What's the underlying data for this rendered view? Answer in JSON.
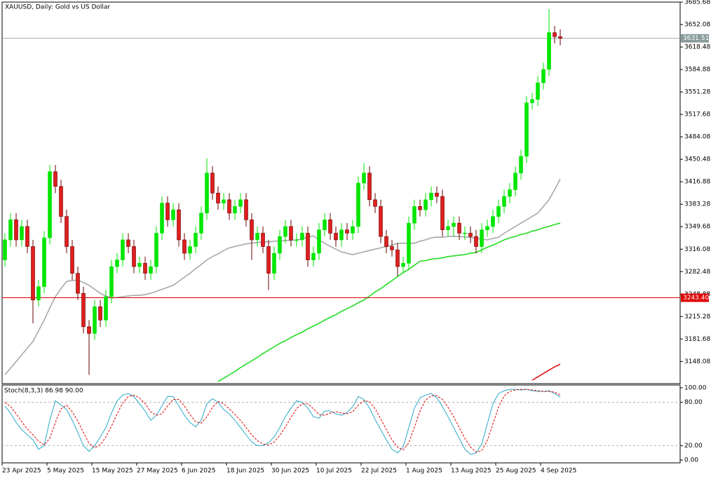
{
  "chart_data": {
    "type": "candlestick",
    "title": "XAUUSD, Daily:  Gold vs US Dollar",
    "categories": [
      "23 Apr 2025",
      null,
      null,
      null,
      null,
      null,
      null,
      null,
      "5 May 2025",
      null,
      null,
      null,
      null,
      null,
      null,
      null,
      "15 May 2025",
      null,
      null,
      null,
      null,
      null,
      null,
      null,
      "27 May 2025",
      null,
      null,
      null,
      null,
      null,
      null,
      null,
      "6 Jun 2025",
      null,
      null,
      null,
      null,
      null,
      null,
      null,
      "18 Jun 2025",
      null,
      null,
      null,
      null,
      null,
      null,
      null,
      "30 Jun 2025",
      null,
      null,
      null,
      null,
      null,
      null,
      null,
      "10 Jul 2025",
      null,
      null,
      null,
      null,
      null,
      null,
      null,
      "22 Jul 2025",
      null,
      null,
      null,
      null,
      null,
      null,
      null,
      "1 Aug 2025",
      null,
      null,
      null,
      null,
      null,
      null,
      null,
      "13 Aug 2025",
      null,
      null,
      null,
      null,
      null,
      null,
      null,
      "25 Aug 2025",
      null,
      null,
      null,
      null,
      null,
      null,
      null,
      "4 Sep 2025",
      null,
      null,
      null
    ],
    "open": [
      3300,
      3330,
      3360,
      3330,
      3350,
      3320,
      3240,
      3260,
      3333,
      3432,
      3410,
      3365,
      3320,
      3280,
      3250,
      3200,
      3190,
      3230,
      3210,
      3245,
      3290,
      3300,
      3330,
      3320,
      3290,
      3295,
      3280,
      3290,
      3340,
      3385,
      3360,
      3375,
      3330,
      3310,
      3320,
      3340,
      3370,
      3430,
      3400,
      3385,
      3390,
      3370,
      3380,
      3390,
      3360,
      3330,
      3340,
      3320,
      3280,
      3310,
      3335,
      3350,
      3330,
      3330,
      3340,
      3300,
      3310,
      3345,
      3360,
      3340,
      3330,
      3345,
      3340,
      3350,
      3415,
      3430,
      3390,
      3380,
      3335,
      3320,
      3315,
      3290,
      3295,
      3355,
      3380,
      3375,
      3390,
      3400,
      3395,
      3345,
      3350,
      3355,
      3340,
      3340,
      3335,
      3320,
      3345,
      3350,
      3365,
      3380,
      3395,
      3405,
      3430,
      3455,
      3535,
      3540,
      3565,
      3585,
      3640,
      3634
    ],
    "high": [
      3340,
      3370,
      3370,
      3360,
      3360,
      3330,
      3270,
      3343,
      3442,
      3442,
      3420,
      3375,
      3330,
      3290,
      3260,
      3210,
      3240,
      3240,
      3255,
      3300,
      3310,
      3340,
      3340,
      3330,
      3305,
      3305,
      3300,
      3350,
      3395,
      3395,
      3385,
      3385,
      3340,
      3330,
      3350,
      3380,
      3452,
      3440,
      3410,
      3400,
      3400,
      3390,
      3400,
      3400,
      3370,
      3350,
      3350,
      3330,
      3320,
      3345,
      3360,
      3360,
      3340,
      3350,
      3350,
      3320,
      3355,
      3370,
      3370,
      3350,
      3355,
      3355,
      3360,
      3425,
      3445,
      3440,
      3400,
      3390,
      3345,
      3330,
      3325,
      3305,
      3365,
      3390,
      3390,
      3400,
      3410,
      3410,
      3405,
      3360,
      3365,
      3365,
      3350,
      3350,
      3345,
      3355,
      3360,
      3375,
      3390,
      3405,
      3415,
      3440,
      3465,
      3545,
      3550,
      3575,
      3595,
      3675,
      3650,
      3645
    ],
    "low": [
      3290,
      3320,
      3320,
      3320,
      3310,
      3205,
      3230,
      3250,
      3323,
      3400,
      3355,
      3310,
      3270,
      3240,
      3190,
      3128,
      3180,
      3200,
      3200,
      3235,
      3280,
      3290,
      3310,
      3280,
      3280,
      3270,
      3270,
      3280,
      3330,
      3350,
      3350,
      3320,
      3300,
      3300,
      3310,
      3330,
      3360,
      3390,
      3375,
      3375,
      3360,
      3360,
      3370,
      3350,
      3300,
      3320,
      3310,
      3255,
      3270,
      3300,
      3325,
      3320,
      3320,
      3320,
      3290,
      3290,
      3300,
      3335,
      3330,
      3320,
      3320,
      3330,
      3330,
      3340,
      3405,
      3380,
      3370,
      3325,
      3310,
      3305,
      3275,
      3280,
      3285,
      3345,
      3365,
      3365,
      3380,
      3385,
      3335,
      3335,
      3335,
      3330,
      3330,
      3325,
      3310,
      3310,
      3335,
      3340,
      3355,
      3370,
      3385,
      3395,
      3420,
      3445,
      3525,
      3530,
      3555,
      3575,
      3624,
      3621
    ],
    "close": [
      3330,
      3360,
      3330,
      3350,
      3320,
      3240,
      3260,
      3333,
      3432,
      3410,
      3365,
      3320,
      3280,
      3250,
      3200,
      3190,
      3230,
      3210,
      3245,
      3290,
      3300,
      3330,
      3320,
      3290,
      3295,
      3280,
      3290,
      3340,
      3385,
      3360,
      3375,
      3330,
      3310,
      3320,
      3340,
      3370,
      3430,
      3400,
      3385,
      3390,
      3370,
      3380,
      3390,
      3360,
      3330,
      3340,
      3320,
      3280,
      3310,
      3335,
      3350,
      3330,
      3330,
      3340,
      3300,
      3310,
      3345,
      3360,
      3340,
      3330,
      3345,
      3340,
      3350,
      3415,
      3430,
      3390,
      3380,
      3335,
      3320,
      3315,
      3290,
      3295,
      3355,
      3380,
      3375,
      3390,
      3400,
      3395,
      3345,
      3350,
      3355,
      3340,
      3340,
      3335,
      3320,
      3345,
      3350,
      3365,
      3380,
      3395,
      3405,
      3430,
      3455,
      3535,
      3540,
      3565,
      3585,
      3640,
      3634,
      3631.51
    ],
    "up_color": "#00e600",
    "down_color": "#e01e1e",
    "ylim": [
      3114.9,
      3685.68
    ],
    "yticks": [
      3685.68,
      3652.08,
      3618.48,
      3584.88,
      3551.28,
      3517.68,
      3484.08,
      3450.48,
      3416.88,
      3383.28,
      3349.68,
      3316.08,
      3282.48,
      3248.88,
      3215.28,
      3181.68,
      3148.08
    ],
    "overlays": [
      {
        "color": "#a8a8a8",
        "values": [
          3128,
          3138,
          3148,
          3158,
          3168,
          3178,
          3194,
          3210,
          3228,
          3245,
          3257,
          3268,
          3269,
          3270,
          3266,
          3262,
          3256,
          3250,
          3246,
          3243,
          3244,
          3245,
          3246,
          3247,
          3247,
          3248,
          3250,
          3253,
          3256,
          3259,
          3262,
          3268,
          3274,
          3280,
          3287,
          3293,
          3300,
          3305,
          3309,
          3314,
          3318,
          3320,
          3322,
          3324,
          3325,
          3326,
          3327,
          3327,
          3328,
          3328,
          3329,
          3329,
          3330,
          3332,
          3334,
          3336,
          3330,
          3325,
          3320,
          3316,
          3312,
          3310,
          3308,
          3310,
          3312,
          3314,
          3316,
          3318,
          3320,
          3322,
          3325,
          3325,
          3325,
          3325,
          3328,
          3330,
          3333,
          3334,
          3334,
          3335,
          3335,
          3335,
          3334,
          3334,
          3332,
          3331,
          3330,
          3332,
          3334,
          3340,
          3345,
          3350,
          3355,
          3360,
          3365,
          3370,
          3380,
          3390,
          3405,
          3421
        ]
      },
      {
        "color": "#22dd22",
        "values": [
          null,
          null,
          null,
          null,
          null,
          null,
          null,
          null,
          null,
          null,
          null,
          null,
          null,
          null,
          null,
          null,
          null,
          null,
          null,
          null,
          null,
          null,
          null,
          null,
          null,
          null,
          null,
          null,
          null,
          null,
          null,
          null,
          null,
          null,
          null,
          null,
          null,
          null,
          3118,
          3123,
          3128,
          3133,
          3139,
          3144,
          3149,
          3154,
          3160,
          3165,
          3170,
          3175,
          3179,
          3184,
          3188,
          3192,
          3197,
          3201,
          3205,
          3210,
          3214,
          3218,
          3223,
          3227,
          3231,
          3236,
          3240,
          3246,
          3252,
          3257,
          3263,
          3269,
          3275,
          3281,
          3286,
          3292,
          3298,
          3299,
          3301,
          3302,
          3303,
          3305,
          3306,
          3307,
          3308,
          3310,
          3311,
          3315,
          3319,
          3322,
          3326,
          3330,
          3333,
          3335,
          3338,
          3340,
          3343,
          3345,
          3348,
          3350,
          3353,
          3355
        ]
      },
      {
        "color": "#e01010",
        "values": [
          null,
          null,
          null,
          null,
          null,
          null,
          null,
          null,
          null,
          null,
          null,
          null,
          null,
          null,
          null,
          null,
          null,
          null,
          null,
          null,
          null,
          null,
          null,
          null,
          null,
          null,
          null,
          null,
          null,
          null,
          null,
          null,
          null,
          null,
          null,
          null,
          null,
          null,
          null,
          null,
          null,
          null,
          null,
          null,
          null,
          null,
          null,
          null,
          null,
          null,
          null,
          null,
          null,
          null,
          null,
          null,
          null,
          null,
          null,
          null,
          null,
          null,
          null,
          null,
          null,
          null,
          null,
          null,
          null,
          null,
          null,
          null,
          null,
          null,
          null,
          null,
          null,
          null,
          null,
          null,
          null,
          null,
          null,
          null,
          null,
          null,
          null,
          null,
          null,
          null,
          null,
          null,
          null,
          null,
          3120,
          3125,
          3130,
          3135,
          3140,
          3144
        ]
      }
    ],
    "price_line": {
      "value": 3631.51,
      "color": "#8a9a9a"
    },
    "level": {
      "value": 3243.4,
      "label": "3243.40",
      "color": "#e00000"
    },
    "stochastic": {
      "title": "Stoch(8,3,3) 86.98 90.00",
      "ylim": [
        0,
        100
      ],
      "yticks": [
        {
          "value": 100,
          "label": "100.00"
        },
        {
          "value": 80,
          "label": "80.00"
        },
        {
          "value": 20,
          "label": "20.00"
        },
        {
          "value": 0,
          "label": "0.00"
        }
      ],
      "k": {
        "color": "#2aa8c8",
        "values": [
          75,
          65,
          52,
          42,
          35,
          28,
          15,
          20,
          55,
          82,
          76,
          70,
          55,
          38,
          20,
          12,
          20,
          32,
          45,
          65,
          82,
          90,
          92,
          88,
          78,
          68,
          55,
          62,
          75,
          88,
          88,
          75,
          62,
          52,
          46,
          55,
          78,
          85,
          80,
          70,
          64,
          55,
          45,
          35,
          25,
          20,
          20,
          24,
          32,
          45,
          60,
          72,
          82,
          80,
          72,
          60,
          58,
          68,
          68,
          64,
          62,
          66,
          74,
          88,
          84,
          72,
          56,
          42,
          28,
          15,
          10,
          18,
          45,
          72,
          86,
          90,
          92,
          86,
          74,
          60,
          45,
          30,
          15,
          8,
          10,
          22,
          50,
          78,
          92,
          96,
          98,
          98,
          97,
          98,
          96,
          95,
          95,
          96,
          92,
          86.98
        ]
      },
      "d": {
        "color": "#e00000",
        "values": [
          80,
          74,
          64,
          53,
          43,
          35,
          26,
          21,
          30,
          52,
          71,
          76,
          67,
          54,
          38,
          23,
          17,
          21,
          32,
          47,
          64,
          79,
          88,
          90,
          86,
          78,
          67,
          62,
          64,
          75,
          84,
          84,
          75,
          63,
          53,
          51,
          60,
          73,
          81,
          78,
          71,
          63,
          55,
          45,
          35,
          27,
          22,
          21,
          25,
          34,
          46,
          59,
          71,
          78,
          78,
          71,
          63,
          62,
          65,
          67,
          65,
          64,
          67,
          76,
          82,
          81,
          71,
          57,
          42,
          28,
          18,
          14,
          24,
          45,
          68,
          83,
          89,
          89,
          84,
          73,
          60,
          45,
          30,
          18,
          11,
          13,
          27,
          50,
          73,
          89,
          95,
          97,
          98,
          98,
          97,
          96,
          95,
          95,
          94,
          90
        ]
      }
    }
  }
}
